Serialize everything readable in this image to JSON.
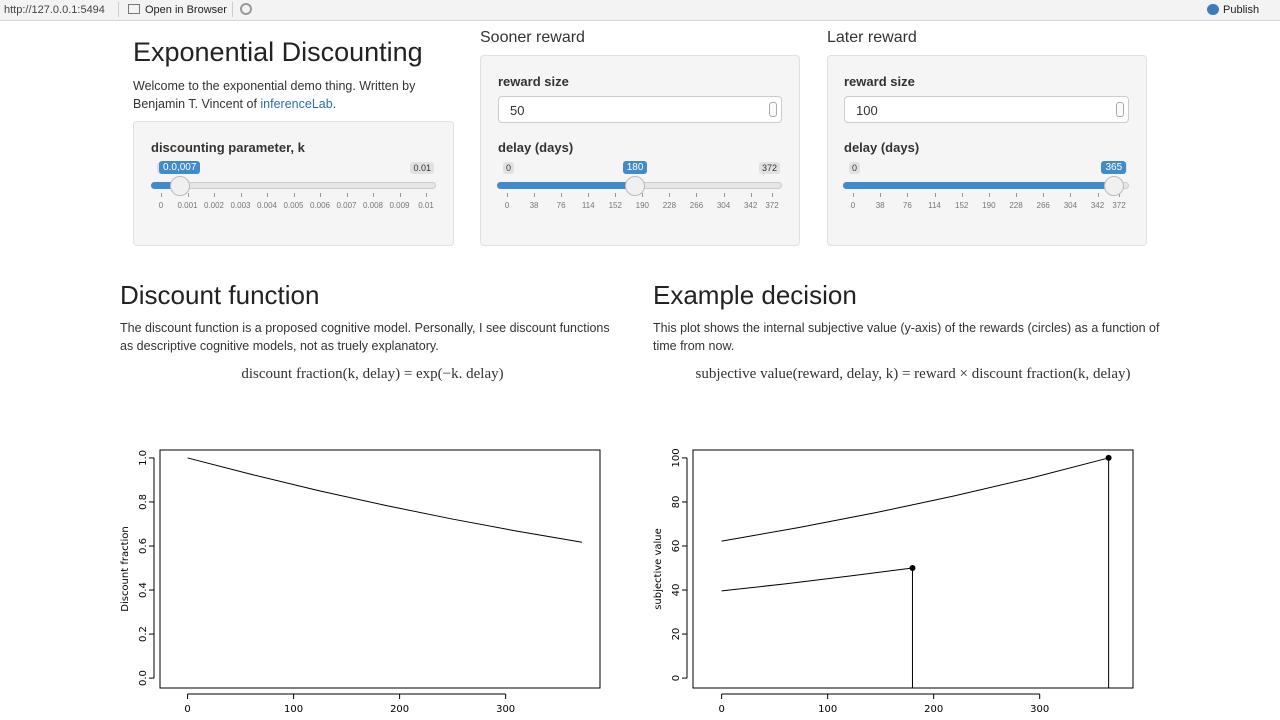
{
  "toolbar": {
    "url": "http://127.0.0.1:5494",
    "open": "Open in Browser",
    "publish": "Publish"
  },
  "header": {
    "title": "Exponential Discounting",
    "intro": "Welcome to the exponential demo thing. Written by Benjamin T. Vincent of",
    "link": "inferenceLab",
    "end": "."
  },
  "k_panel": {
    "label": "discounting parameter, k",
    "slider": {
      "min": 0,
      "max": 0.01,
      "value": 0.0007,
      "value_label": "0.0,007",
      "ticks": [
        0,
        0.001,
        0.002,
        0.003,
        0.004,
        0.005,
        0.006,
        0.007,
        0.008,
        0.009,
        0.01
      ]
    }
  },
  "sooner": {
    "heading": "Sooner reward",
    "size_label": "reward size",
    "size": 50,
    "delay_label": "delay (days)",
    "slider": {
      "min": 0,
      "max": 372,
      "value": 180,
      "ticks": [
        0,
        38,
        76,
        114,
        152,
        190,
        228,
        266,
        304,
        342,
        372
      ]
    }
  },
  "later": {
    "heading": "Later reward",
    "size_label": "reward size",
    "size": 100,
    "delay_label": "delay (days)",
    "slider": {
      "min": 0,
      "max": 372,
      "value": 365,
      "ticks": [
        0,
        38,
        76,
        114,
        152,
        190,
        228,
        266,
        304,
        342,
        372
      ]
    }
  },
  "sections": [
    {
      "heading": "Discount function",
      "text": "The discount function is a proposed cognitive model. Personally, I see discount functions as descriptive cognitive models, not as truely explanatory.",
      "formula": "discount fraction(k, delay) = exp(−k. delay)"
    },
    {
      "heading": "Example decision",
      "text": "This plot shows the internal subjective value (y-axis) of the rewards (circles) as a function of time from now.",
      "formula": "subjective value(reward, delay, k) = reward × discount fraction(k, delay)"
    }
  ],
  "chart_data": [
    {
      "type": "line",
      "y_label": "Discount fraction",
      "x": [
        0,
        62,
        124,
        186,
        248,
        310,
        372
      ],
      "values": [
        1,
        0.923,
        0.851,
        0.785,
        0.724,
        0.668,
        0.617
      ],
      "color": "#000000",
      "xlim": [
        -26,
        389
      ],
      "ylim": [
        -0.045,
        1.036
      ],
      "xticks": [
        0,
        100,
        200,
        300
      ],
      "yticks": [
        {
          "value": 0,
          "label": "0.0"
        },
        {
          "value": 0.2,
          "label": "0.2"
        },
        {
          "value": 0.4,
          "label": "0.4"
        },
        {
          "value": 0.6,
          "label": "0.6"
        },
        {
          "value": 0.8,
          "label": "0.8"
        },
        {
          "value": 1,
          "label": "1.0"
        }
      ]
    },
    {
      "type": "line",
      "y_label": "subjective value",
      "color": "#000000",
      "series": [
        {
          "x": [
            0,
            73,
            146,
            219,
            292,
            365
          ],
          "values": [
            62.2,
            68.4,
            75.2,
            82.7,
            90.9,
            100
          ]
        },
        {
          "x": [
            0,
            60,
            120,
            180
          ],
          "values": [
            39.6,
            42.8,
            46.3,
            50
          ]
        }
      ],
      "points": {
        "x": [
          180,
          365
        ],
        "values": [
          50,
          100
        ]
      },
      "xlim": [
        -27,
        388
      ],
      "ylim": [
        -4.5,
        103.6
      ],
      "xticks": [
        0,
        100,
        200,
        300
      ],
      "yticks": [
        0,
        20,
        40,
        60,
        80,
        100
      ]
    }
  ]
}
